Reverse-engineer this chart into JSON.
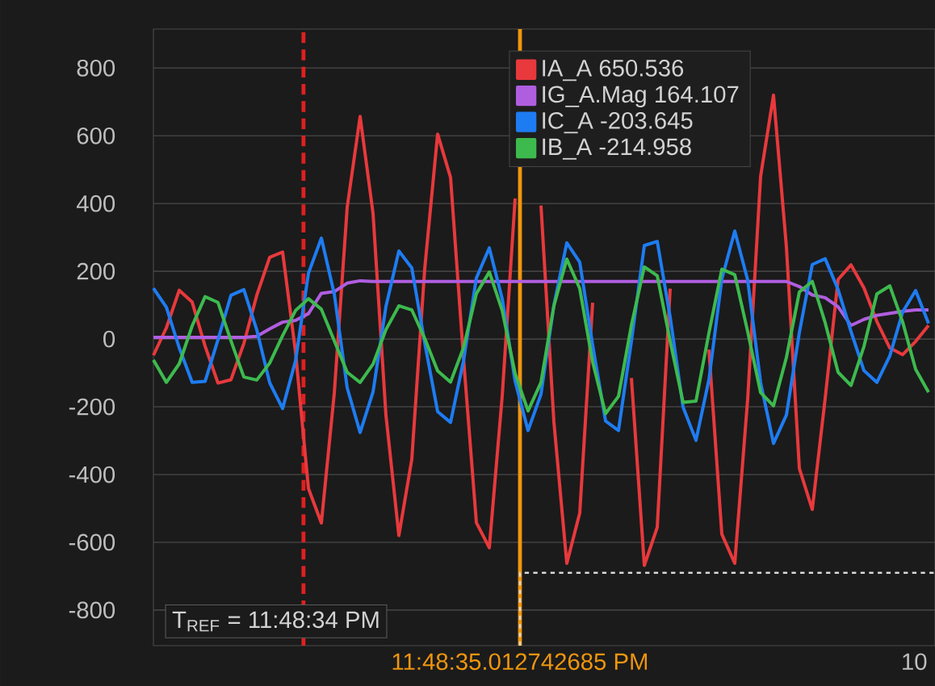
{
  "chart_data": {
    "type": "line",
    "categories": [
      null,
      null,
      null,
      null,
      null,
      null,
      null,
      null,
      null,
      null,
      null,
      null,
      null,
      null,
      null,
      null,
      null,
      null,
      null,
      null,
      null,
      null,
      null,
      null,
      null,
      null,
      null,
      null,
      null,
      null,
      null,
      null,
      null,
      null,
      null,
      null,
      null,
      null,
      null,
      null,
      null,
      null,
      null,
      null,
      null,
      null,
      null,
      null,
      null,
      null,
      null,
      null,
      null,
      null,
      null,
      null,
      null,
      null,
      null,
      null,
      null
    ],
    "series": [
      {
        "name": "IA_A  650.536",
        "color": "#e8393c",
        "values": [
          -48,
          33,
          144,
          109,
          -21,
          -130,
          -120,
          -13,
          129,
          241,
          257,
          -38,
          -441,
          -543,
          -160,
          389,
          657,
          371,
          -225,
          -580,
          -355,
          207,
          605,
          477,
          -55,
          -542,
          -616,
          -168,
          415,
          null,
          394,
          -245,
          -662,
          -514,
          107,
          null,
          null,
          -115,
          -668,
          -556,
          149,
          null,
          null,
          -31,
          -576,
          -662,
          -177,
          480,
          720,
          271,
          -382,
          -503,
          -175,
          176,
          219,
          151,
          52,
          -26,
          -46,
          -7,
          40
        ]
      },
      {
        "name": "IG_A.Mag  164.107",
        "color": "#b05ee0",
        "values": [
          5,
          5,
          5,
          5,
          5,
          5,
          5,
          5,
          8,
          30,
          50,
          55,
          75,
          135,
          140,
          165,
          172,
          170,
          170,
          170,
          170,
          170,
          170,
          170,
          170,
          170,
          170,
          170,
          170,
          170,
          170,
          170,
          170,
          170,
          170,
          170,
          170,
          170,
          170,
          170,
          170,
          170,
          170,
          170,
          170,
          170,
          170,
          170,
          170,
          170,
          155,
          130,
          122,
          95,
          40,
          58,
          70,
          76,
          82,
          86,
          86
        ]
      },
      {
        "name": "IC_A  -203.645",
        "color": "#1e7cf2",
        "values": [
          150,
          94,
          -26,
          -128,
          -125,
          -2,
          129,
          146,
          27,
          -129,
          -205,
          -64,
          194,
          298,
          133,
          -144,
          -276,
          -156,
          96,
          260,
          210,
          -11,
          -214,
          -246,
          -65,
          180,
          269,
          119,
          -125,
          -270,
          -163,
          100,
          284,
          227,
          -18,
          -242,
          -270,
          -6,
          276,
          288,
          65,
          -201,
          -299,
          -120,
          177,
          319,
          174,
          -128,
          -308,
          -224,
          19,
          220,
          237,
          146,
          22,
          -93,
          -128,
          -50,
          80,
          143,
          46
        ]
      },
      {
        "name": "IB_A  -214.958",
        "color": "#3dba4e",
        "values": [
          -62,
          -128,
          -73,
          39,
          125,
          108,
          -5,
          -112,
          -121,
          -71,
          10,
          84,
          119,
          88,
          -5,
          -98,
          -128,
          -74,
          28,
          98,
          86,
          2,
          -94,
          -127,
          -26,
          134,
          198,
          84,
          -102,
          -212,
          -128,
          98,
          236,
          149,
          -68,
          -220,
          -169,
          41,
          213,
          187,
          -6,
          -187,
          -183,
          18,
          206,
          190,
          22,
          -158,
          -197,
          -54,
          139,
          170,
          48,
          -98,
          -137,
          -22,
          133,
          157,
          50,
          -89,
          -157
        ]
      }
    ],
    "ylim": [
      -905,
      915
    ],
    "yticks": [
      -800,
      -600,
      -400,
      -200,
      0,
      200,
      400,
      600,
      800
    ],
    "grid": "y",
    "legend": "top right",
    "marker": "none",
    "line_style": "solid",
    "ref_lines": [
      {
        "axis": "y",
        "value": -690,
        "color": "#d8d8d8",
        "line_style": "dotted"
      }
    ],
    "annotations": [
      "T$_{REF}$ = 11:48:34 PM",
      "10",
      "11:48:35.012742685 PM"
    ]
  }
}
